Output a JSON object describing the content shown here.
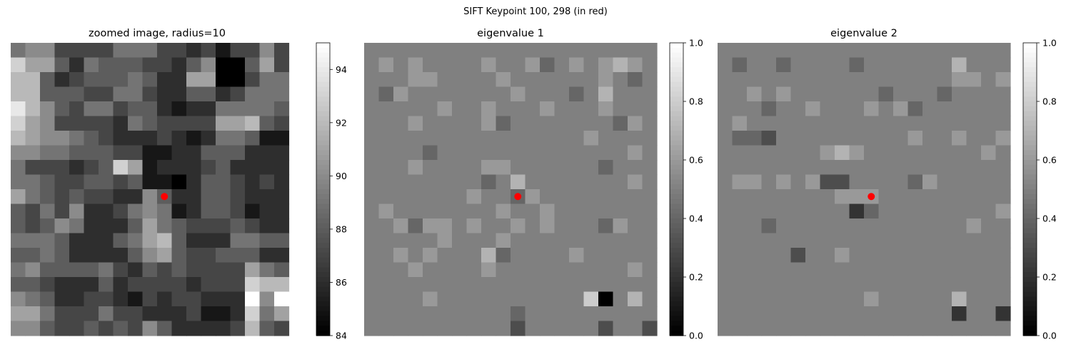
{
  "figure": {
    "suptitle": "SIFT Keypoint 100, 298 (in red)"
  },
  "marker_color": "#ff0000",
  "chart_data": [
    {
      "type": "heatmap",
      "title": "zoomed image, radius=10",
      "colormap": "gray",
      "vmin": 84,
      "vmax": 95,
      "colorbar_ticks": [
        "84",
        "86",
        "88",
        "90",
        "92",
        "94"
      ],
      "keypoint": {
        "row": 10,
        "col": 10
      },
      "grid": [
        [
          89,
          90,
          90,
          87,
          87,
          87,
          87,
          89,
          89,
          89,
          87,
          87,
          86,
          87,
          85,
          87,
          87,
          90,
          87
        ],
        [
          93,
          91,
          91,
          88,
          86,
          89,
          88,
          88,
          88,
          87,
          87,
          86,
          88,
          90,
          84,
          84,
          88,
          91,
          87
        ],
        [
          92,
          92,
          88,
          86,
          87,
          88,
          88,
          88,
          89,
          88,
          86,
          86,
          91,
          91,
          84,
          84,
          87,
          89,
          89
        ],
        [
          92,
          92,
          88,
          88,
          88,
          87,
          87,
          89,
          89,
          87,
          86,
          86,
          88,
          88,
          86,
          87,
          89,
          89,
          89
        ],
        [
          94,
          92,
          90,
          88,
          87,
          89,
          89,
          87,
          88,
          88,
          86,
          85,
          86,
          86,
          89,
          89,
          89,
          89,
          88
        ],
        [
          93,
          91,
          90,
          87,
          87,
          87,
          87,
          86,
          89,
          88,
          87,
          87,
          87,
          87,
          91,
          91,
          92,
          88,
          87
        ],
        [
          92,
          91,
          90,
          90,
          89,
          88,
          87,
          86,
          86,
          86,
          87,
          86,
          85,
          86,
          89,
          89,
          88,
          85,
          85
        ],
        [
          90,
          90,
          89,
          89,
          88,
          88,
          88,
          87,
          87,
          85,
          85,
          86,
          86,
          88,
          88,
          88,
          86,
          86,
          86
        ],
        [
          89,
          87,
          87,
          87,
          86,
          87,
          88,
          93,
          91,
          85,
          86,
          86,
          86,
          87,
          88,
          86,
          86,
          86,
          86
        ],
        [
          89,
          89,
          88,
          87,
          87,
          88,
          88,
          87,
          88,
          85,
          85,
          84,
          86,
          88,
          88,
          87,
          86,
          87,
          86
        ],
        [
          91,
          89,
          88,
          87,
          88,
          87,
          87,
          86,
          86,
          90,
          88,
          86,
          86,
          88,
          88,
          87,
          86,
          86,
          86
        ],
        [
          88,
          87,
          89,
          87,
          90,
          86,
          86,
          87,
          89,
          90,
          89,
          85,
          86,
          88,
          88,
          87,
          85,
          86,
          86
        ],
        [
          88,
          87,
          88,
          90,
          89,
          86,
          86,
          86,
          88,
          91,
          89,
          88,
          87,
          87,
          87,
          88,
          87,
          86,
          86
        ],
        [
          89,
          89,
          89,
          88,
          86,
          86,
          86,
          88,
          89,
          91,
          92,
          88,
          86,
          86,
          86,
          89,
          89,
          88,
          88
        ],
        [
          88,
          88,
          89,
          88,
          86,
          86,
          86,
          86,
          88,
          90,
          91,
          88,
          87,
          87,
          88,
          88,
          88,
          86,
          86
        ],
        [
          89,
          90,
          88,
          88,
          88,
          88,
          89,
          87,
          86,
          88,
          87,
          88,
          87,
          87,
          87,
          87,
          91,
          89,
          88
        ],
        [
          88,
          88,
          87,
          86,
          86,
          86,
          88,
          86,
          87,
          87,
          87,
          87,
          86,
          87,
          87,
          87,
          93,
          92,
          92
        ],
        [
          90,
          89,
          88,
          86,
          86,
          87,
          87,
          86,
          85,
          87,
          86,
          87,
          87,
          86,
          86,
          86,
          95,
          90,
          95
        ],
        [
          91,
          91,
          89,
          87,
          87,
          87,
          89,
          87,
          87,
          86,
          86,
          86,
          87,
          85,
          85,
          86,
          93,
          89,
          91
        ],
        [
          90,
          90,
          88,
          87,
          87,
          88,
          87,
          88,
          87,
          90,
          88,
          86,
          86,
          86,
          86,
          87,
          92,
          88,
          87
        ]
      ]
    },
    {
      "type": "heatmap",
      "title": "eigenvalue 1",
      "colormap": "gray",
      "vmin": 0.0,
      "vmax": 1.0,
      "colorbar_ticks": [
        "0.0",
        "0.2",
        "0.4",
        "0.6",
        "0.8",
        "1.0"
      ],
      "keypoint": {
        "row": 10,
        "col": 10
      },
      "grid": [
        [
          0.5,
          0.5,
          0.5,
          0.5,
          0.5,
          0.5,
          0.5,
          0.5,
          0.5,
          0.5,
          0.5,
          0.5,
          0.5,
          0.5,
          0.5,
          0.5,
          0.5,
          0.5,
          0.5,
          0.5
        ],
        [
          0.5,
          0.6,
          0.5,
          0.6,
          0.5,
          0.5,
          0.5,
          0.5,
          0.6,
          0.5,
          0.5,
          0.6,
          0.4,
          0.5,
          0.6,
          0.5,
          0.6,
          0.7,
          0.6,
          0.5
        ],
        [
          0.5,
          0.5,
          0.5,
          0.6,
          0.6,
          0.5,
          0.5,
          0.5,
          0.5,
          0.6,
          0.5,
          0.5,
          0.5,
          0.5,
          0.5,
          0.5,
          0.6,
          0.5,
          0.4,
          0.5
        ],
        [
          0.5,
          0.4,
          0.6,
          0.5,
          0.5,
          0.5,
          0.5,
          0.5,
          0.5,
          0.5,
          0.6,
          0.5,
          0.5,
          0.5,
          0.4,
          0.5,
          0.7,
          0.5,
          0.5,
          0.5
        ],
        [
          0.5,
          0.5,
          0.5,
          0.5,
          0.5,
          0.6,
          0.5,
          0.5,
          0.6,
          0.5,
          0.5,
          0.5,
          0.6,
          0.5,
          0.5,
          0.5,
          0.6,
          0.5,
          0.5,
          0.5
        ],
        [
          0.5,
          0.5,
          0.5,
          0.6,
          0.5,
          0.5,
          0.5,
          0.5,
          0.6,
          0.4,
          0.5,
          0.5,
          0.5,
          0.5,
          0.5,
          0.5,
          0.5,
          0.4,
          0.6,
          0.5
        ],
        [
          0.5,
          0.5,
          0.5,
          0.5,
          0.5,
          0.5,
          0.5,
          0.5,
          0.5,
          0.5,
          0.5,
          0.5,
          0.5,
          0.5,
          0.5,
          0.6,
          0.5,
          0.5,
          0.5,
          0.5
        ],
        [
          0.5,
          0.5,
          0.5,
          0.5,
          0.4,
          0.5,
          0.5,
          0.5,
          0.5,
          0.5,
          0.5,
          0.5,
          0.5,
          0.5,
          0.5,
          0.5,
          0.5,
          0.5,
          0.6,
          0.5
        ],
        [
          0.5,
          0.5,
          0.5,
          0.6,
          0.5,
          0.5,
          0.5,
          0.5,
          0.6,
          0.6,
          0.5,
          0.5,
          0.5,
          0.5,
          0.5,
          0.5,
          0.4,
          0.5,
          0.5,
          0.5
        ],
        [
          0.5,
          0.5,
          0.5,
          0.5,
          0.5,
          0.5,
          0.5,
          0.5,
          0.4,
          0.5,
          0.7,
          0.5,
          0.5,
          0.5,
          0.5,
          0.5,
          0.5,
          0.5,
          0.6,
          0.5
        ],
        [
          0.5,
          0.5,
          0.5,
          0.5,
          0.5,
          0.5,
          0.5,
          0.6,
          0.5,
          0.5,
          0.4,
          0.6,
          0.5,
          0.5,
          0.5,
          0.5,
          0.5,
          0.5,
          0.5,
          0.5
        ],
        [
          0.5,
          0.6,
          0.5,
          0.5,
          0.5,
          0.5,
          0.5,
          0.5,
          0.5,
          0.6,
          0.5,
          0.5,
          0.6,
          0.5,
          0.5,
          0.5,
          0.5,
          0.5,
          0.5,
          0.5
        ],
        [
          0.5,
          0.5,
          0.6,
          0.4,
          0.6,
          0.6,
          0.5,
          0.6,
          0.5,
          0.5,
          0.6,
          0.5,
          0.6,
          0.5,
          0.5,
          0.5,
          0.4,
          0.6,
          0.5,
          0.5
        ],
        [
          0.5,
          0.5,
          0.5,
          0.5,
          0.5,
          0.6,
          0.5,
          0.5,
          0.5,
          0.6,
          0.5,
          0.5,
          0.5,
          0.5,
          0.5,
          0.5,
          0.5,
          0.5,
          0.5,
          0.5
        ],
        [
          0.5,
          0.5,
          0.6,
          0.5,
          0.6,
          0.5,
          0.5,
          0.5,
          0.7,
          0.4,
          0.5,
          0.5,
          0.5,
          0.5,
          0.6,
          0.5,
          0.5,
          0.5,
          0.5,
          0.5
        ],
        [
          0.5,
          0.5,
          0.5,
          0.6,
          0.5,
          0.5,
          0.5,
          0.5,
          0.6,
          0.5,
          0.5,
          0.5,
          0.5,
          0.5,
          0.5,
          0.5,
          0.5,
          0.5,
          0.6,
          0.5
        ],
        [
          0.5,
          0.5,
          0.5,
          0.5,
          0.5,
          0.5,
          0.5,
          0.5,
          0.5,
          0.5,
          0.5,
          0.5,
          0.5,
          0.5,
          0.5,
          0.5,
          0.5,
          0.5,
          0.5,
          0.5
        ],
        [
          0.5,
          0.5,
          0.5,
          0.5,
          0.6,
          0.5,
          0.5,
          0.5,
          0.5,
          0.5,
          0.5,
          0.5,
          0.5,
          0.5,
          0.5,
          0.8,
          0.0,
          0.5,
          0.7,
          0.5
        ],
        [
          0.5,
          0.5,
          0.5,
          0.5,
          0.5,
          0.5,
          0.5,
          0.5,
          0.5,
          0.5,
          0.4,
          0.5,
          0.5,
          0.5,
          0.5,
          0.5,
          0.5,
          0.5,
          0.5,
          0.5
        ],
        [
          0.5,
          0.5,
          0.5,
          0.5,
          0.5,
          0.5,
          0.5,
          0.5,
          0.5,
          0.5,
          0.3,
          0.5,
          0.5,
          0.5,
          0.5,
          0.5,
          0.3,
          0.5,
          0.5,
          0.3
        ]
      ]
    },
    {
      "type": "heatmap",
      "title": "eigenvalue 2",
      "colormap": "gray",
      "vmin": 0.0,
      "vmax": 1.0,
      "colorbar_ticks": [
        "0.0",
        "0.2",
        "0.4",
        "0.6",
        "0.8",
        "1.0"
      ],
      "keypoint": {
        "row": 10,
        "col": 10
      },
      "grid": [
        [
          0.5,
          0.5,
          0.5,
          0.5,
          0.5,
          0.5,
          0.5,
          0.5,
          0.5,
          0.5,
          0.5,
          0.5,
          0.5,
          0.5,
          0.5,
          0.5,
          0.5,
          0.5,
          0.5,
          0.5
        ],
        [
          0.5,
          0.4,
          0.5,
          0.5,
          0.4,
          0.5,
          0.5,
          0.5,
          0.5,
          0.4,
          0.5,
          0.5,
          0.5,
          0.5,
          0.5,
          0.5,
          0.7,
          0.5,
          0.5,
          0.5
        ],
        [
          0.5,
          0.5,
          0.5,
          0.5,
          0.5,
          0.5,
          0.5,
          0.5,
          0.5,
          0.5,
          0.5,
          0.5,
          0.5,
          0.5,
          0.5,
          0.5,
          0.6,
          0.6,
          0.5,
          0.6
        ],
        [
          0.5,
          0.5,
          0.6,
          0.5,
          0.6,
          0.5,
          0.5,
          0.5,
          0.5,
          0.5,
          0.5,
          0.4,
          0.5,
          0.5,
          0.5,
          0.4,
          0.5,
          0.5,
          0.5,
          0.5
        ],
        [
          0.5,
          0.5,
          0.5,
          0.4,
          0.5,
          0.5,
          0.6,
          0.5,
          0.5,
          0.5,
          0.6,
          0.5,
          0.6,
          0.4,
          0.5,
          0.5,
          0.5,
          0.5,
          0.5,
          0.5
        ],
        [
          0.5,
          0.6,
          0.5,
          0.5,
          0.5,
          0.5,
          0.5,
          0.5,
          0.5,
          0.5,
          0.5,
          0.5,
          0.5,
          0.5,
          0.5,
          0.5,
          0.5,
          0.5,
          0.5,
          0.5
        ],
        [
          0.5,
          0.4,
          0.4,
          0.3,
          0.5,
          0.5,
          0.5,
          0.5,
          0.5,
          0.5,
          0.5,
          0.5,
          0.5,
          0.6,
          0.5,
          0.5,
          0.6,
          0.5,
          0.5,
          0.6
        ],
        [
          0.5,
          0.5,
          0.5,
          0.5,
          0.5,
          0.5,
          0.5,
          0.6,
          0.7,
          0.6,
          0.5,
          0.5,
          0.5,
          0.5,
          0.5,
          0.5,
          0.5,
          0.5,
          0.6,
          0.5
        ],
        [
          0.5,
          0.5,
          0.5,
          0.5,
          0.5,
          0.5,
          0.5,
          0.5,
          0.5,
          0.5,
          0.5,
          0.5,
          0.5,
          0.5,
          0.5,
          0.5,
          0.5,
          0.5,
          0.5,
          0.5
        ],
        [
          0.5,
          0.6,
          0.6,
          0.5,
          0.6,
          0.5,
          0.6,
          0.3,
          0.3,
          0.5,
          0.5,
          0.5,
          0.5,
          0.4,
          0.6,
          0.5,
          0.5,
          0.5,
          0.5,
          0.5
        ],
        [
          0.5,
          0.5,
          0.5,
          0.5,
          0.5,
          0.5,
          0.5,
          0.5,
          0.6,
          0.6,
          0.6,
          0.5,
          0.5,
          0.5,
          0.5,
          0.5,
          0.5,
          0.5,
          0.5,
          0.5
        ],
        [
          0.5,
          0.5,
          0.5,
          0.5,
          0.5,
          0.5,
          0.5,
          0.5,
          0.5,
          0.2,
          0.4,
          0.5,
          0.5,
          0.5,
          0.5,
          0.5,
          0.5,
          0.5,
          0.5,
          0.6
        ],
        [
          0.5,
          0.5,
          0.5,
          0.4,
          0.5,
          0.5,
          0.5,
          0.5,
          0.5,
          0.5,
          0.5,
          0.5,
          0.5,
          0.5,
          0.5,
          0.5,
          0.5,
          0.6,
          0.5,
          0.5
        ],
        [
          0.5,
          0.5,
          0.5,
          0.5,
          0.5,
          0.5,
          0.5,
          0.5,
          0.5,
          0.5,
          0.5,
          0.5,
          0.5,
          0.5,
          0.5,
          0.5,
          0.5,
          0.5,
          0.5,
          0.5
        ],
        [
          0.5,
          0.5,
          0.5,
          0.5,
          0.5,
          0.3,
          0.5,
          0.5,
          0.6,
          0.5,
          0.5,
          0.5,
          0.5,
          0.5,
          0.5,
          0.5,
          0.5,
          0.5,
          0.5,
          0.5
        ],
        [
          0.5,
          0.5,
          0.5,
          0.5,
          0.5,
          0.5,
          0.5,
          0.5,
          0.5,
          0.5,
          0.5,
          0.5,
          0.5,
          0.5,
          0.5,
          0.5,
          0.5,
          0.5,
          0.5,
          0.5
        ],
        [
          0.5,
          0.5,
          0.5,
          0.5,
          0.5,
          0.5,
          0.5,
          0.5,
          0.5,
          0.5,
          0.5,
          0.5,
          0.5,
          0.5,
          0.5,
          0.5,
          0.5,
          0.5,
          0.5,
          0.5
        ],
        [
          0.5,
          0.5,
          0.5,
          0.5,
          0.5,
          0.5,
          0.5,
          0.5,
          0.5,
          0.5,
          0.6,
          0.5,
          0.5,
          0.5,
          0.5,
          0.5,
          0.7,
          0.5,
          0.5,
          0.5
        ],
        [
          0.5,
          0.5,
          0.5,
          0.5,
          0.5,
          0.5,
          0.5,
          0.5,
          0.5,
          0.5,
          0.5,
          0.5,
          0.5,
          0.5,
          0.5,
          0.5,
          0.2,
          0.5,
          0.5,
          0.2
        ],
        [
          0.5,
          0.5,
          0.5,
          0.5,
          0.5,
          0.5,
          0.5,
          0.5,
          0.5,
          0.5,
          0.5,
          0.5,
          0.5,
          0.5,
          0.5,
          0.5,
          0.5,
          0.5,
          0.5,
          0.5
        ]
      ]
    }
  ]
}
